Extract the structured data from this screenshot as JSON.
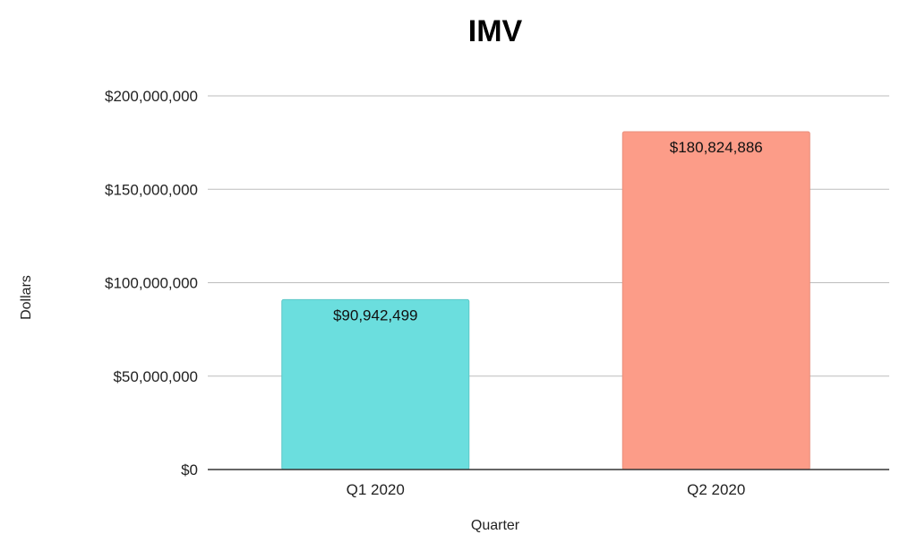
{
  "chart_data": {
    "type": "bar",
    "title": "IMV",
    "xlabel": "Quarter",
    "ylabel": "Dollars",
    "categories": [
      "Q1 2020",
      "Q2 2020"
    ],
    "values": [
      90942499,
      180824886
    ],
    "data_labels": [
      "$90,942,499",
      "$180,824,886"
    ],
    "bar_colors": [
      "#6BDEDE",
      "#FC9C88"
    ],
    "ylim": [
      0,
      200000000
    ],
    "yticks": [
      0,
      50000000,
      100000000,
      150000000,
      200000000
    ],
    "ytick_labels": [
      "$0",
      "$50,000,000",
      "$100,000,000",
      "$150,000,000",
      "$200,000,000"
    ],
    "grid": true,
    "legend": "none"
  }
}
